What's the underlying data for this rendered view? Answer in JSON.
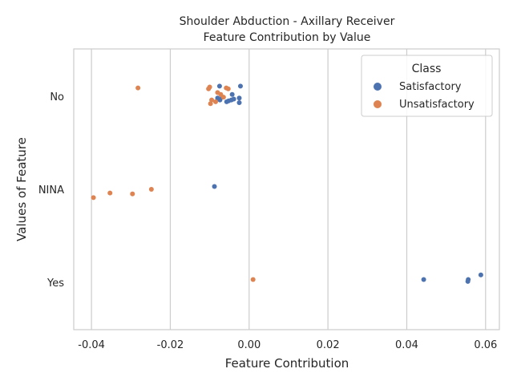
{
  "chart_data": {
    "type": "scatter",
    "title_line1": "Shoulder Abduction - Axillary Receiver",
    "title_line2": "Feature Contribution by Value",
    "xlabel": "Feature Contribution",
    "ylabel": "Values of Feature",
    "xlim": [
      -0.0445,
      0.0635
    ],
    "x_ticks": [
      "-0.04",
      "-0.02",
      "0.00",
      "0.02",
      "0.04",
      "0.06"
    ],
    "x_tick_values": [
      -0.04,
      -0.02,
      0.0,
      0.02,
      0.04,
      0.06
    ],
    "categories": [
      "No",
      "NINA",
      "Yes"
    ],
    "grid": "vertical",
    "legend": {
      "title": "Class",
      "placement": "top-right",
      "entries": [
        "Satisfactory",
        "Unsatisfactory"
      ]
    },
    "series": [
      {
        "name": "Satisfactory",
        "color": "#4c72b0",
        "points": [
          {
            "x": -0.0075,
            "y": "No",
            "jitter": -0.11
          },
          {
            "x": -0.0022,
            "y": "No",
            "jitter": -0.11
          },
          {
            "x": -0.0043,
            "y": "No",
            "jitter": -0.02
          },
          {
            "x": -0.008,
            "y": "No",
            "jitter": 0.02
          },
          {
            "x": -0.0074,
            "y": "No",
            "jitter": 0.04
          },
          {
            "x": -0.0068,
            "y": "No",
            "jitter": 0.01
          },
          {
            "x": -0.0052,
            "y": "No",
            "jitter": 0.05
          },
          {
            "x": -0.0057,
            "y": "No",
            "jitter": 0.06
          },
          {
            "x": -0.0045,
            "y": "No",
            "jitter": 0.04
          },
          {
            "x": -0.0039,
            "y": "No",
            "jitter": 0.03
          },
          {
            "x": -0.0025,
            "y": "No",
            "jitter": 0.02
          },
          {
            "x": -0.0025,
            "y": "No",
            "jitter": 0.07
          },
          {
            "x": -0.0088,
            "y": "NINA",
            "jitter": -0.03
          },
          {
            "x": 0.0443,
            "y": "Yes",
            "jitter": -0.03
          },
          {
            "x": 0.0556,
            "y": "Yes",
            "jitter": -0.03
          },
          {
            "x": 0.0555,
            "y": "Yes",
            "jitter": -0.01
          },
          {
            "x": 0.0588,
            "y": "Yes",
            "jitter": -0.08
          }
        ]
      },
      {
        "name": "Unsatisfactory",
        "color": "#dd8452",
        "points": [
          {
            "x": -0.0282,
            "y": "No",
            "jitter": -0.09
          },
          {
            "x": -0.01,
            "y": "No",
            "jitter": -0.1
          },
          {
            "x": -0.0103,
            "y": "No",
            "jitter": -0.08
          },
          {
            "x": -0.0058,
            "y": "No",
            "jitter": -0.09
          },
          {
            "x": -0.0053,
            "y": "No",
            "jitter": -0.08
          },
          {
            "x": -0.008,
            "y": "No",
            "jitter": -0.04
          },
          {
            "x": -0.0072,
            "y": "No",
            "jitter": -0.02
          },
          {
            "x": -0.0065,
            "y": "No",
            "jitter": 0.01
          },
          {
            "x": -0.0095,
            "y": "No",
            "jitter": 0.04
          },
          {
            "x": -0.0098,
            "y": "No",
            "jitter": 0.08
          },
          {
            "x": -0.0085,
            "y": "No",
            "jitter": 0.06
          },
          {
            "x": -0.0248,
            "y": "NINA",
            "jitter": 0.0
          },
          {
            "x": -0.0353,
            "y": "NINA",
            "jitter": 0.04
          },
          {
            "x": -0.0296,
            "y": "NINA",
            "jitter": 0.05
          },
          {
            "x": -0.0395,
            "y": "NINA",
            "jitter": 0.09
          },
          {
            "x": 0.001,
            "y": "Yes",
            "jitter": -0.03
          }
        ]
      }
    ]
  }
}
